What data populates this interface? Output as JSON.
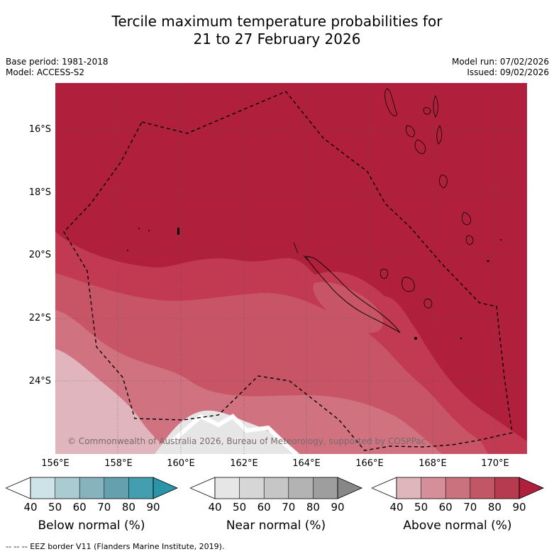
{
  "title_line1": "Tercile maximum temperature probabilities for",
  "title_line2": "21 to 27 February 2026",
  "base_period": "Base period: 1981-2018",
  "model": "Model: ACCESS-S2",
  "model_run": "Model run: 07/02/2026",
  "issued": "Issued: 09/02/2026",
  "lat_labels": [
    "16°S",
    "18°S",
    "20°S",
    "22°S",
    "24°S"
  ],
  "lon_labels": [
    "156°E",
    "158°E",
    "160°E",
    "162°E",
    "164°E",
    "166°E",
    "168°E",
    "170°E"
  ],
  "copyright": "© Commonwealth of Australia 2026, Bureau of Meteorology, supported by COSPPac",
  "colorbars": [
    {
      "title": "Below normal (%)",
      "ticks": [
        "40",
        "50",
        "60",
        "70",
        "80",
        "90"
      ],
      "colors": [
        "#ffffff",
        "#cde3e8",
        "#a9cbd1",
        "#86b3bd",
        "#64a0ad",
        "#439faf",
        "#2a95a8"
      ]
    },
    {
      "title": "Near normal (%)",
      "ticks": [
        "40",
        "50",
        "60",
        "70",
        "80",
        "90"
      ],
      "colors": [
        "#ffffff",
        "#e6e6e6",
        "#d6d6d6",
        "#c6c6c6",
        "#b3b3b3",
        "#9e9e9e",
        "#878787"
      ]
    },
    {
      "title": "Above normal (%)",
      "ticks": [
        "40",
        "50",
        "60",
        "70",
        "80",
        "90"
      ],
      "colors": [
        "#ffffff",
        "#e0b6bd",
        "#d48f99",
        "#ca737e",
        "#c15665",
        "#b73b4f",
        "#b01f3b"
      ]
    }
  ],
  "eez_note": "--  --  -- EEZ border V11 (Flanders Marine Institute, 2019).",
  "colors": {
    "above_80_90": "#b01f3b",
    "above_70_80": "#c23a51",
    "above_60_70": "#c85565",
    "above_50_60": "#d0727f",
    "above_40_50": "#e0b5bd",
    "near_40_50": "#e6e6e6"
  }
}
